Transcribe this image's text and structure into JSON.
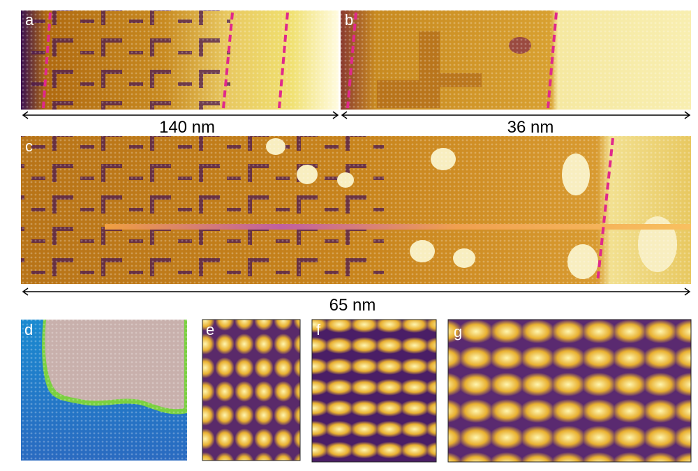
{
  "panels": [
    {
      "label": "a"
    },
    {
      "label": "b"
    },
    {
      "label": "c"
    },
    {
      "label": "d"
    },
    {
      "label": "e"
    },
    {
      "label": "f"
    },
    {
      "label": "g"
    }
  ],
  "scale_bars": [
    {
      "label": "140 nm"
    },
    {
      "label": "36 nm"
    },
    {
      "label": "65 nm"
    }
  ]
}
